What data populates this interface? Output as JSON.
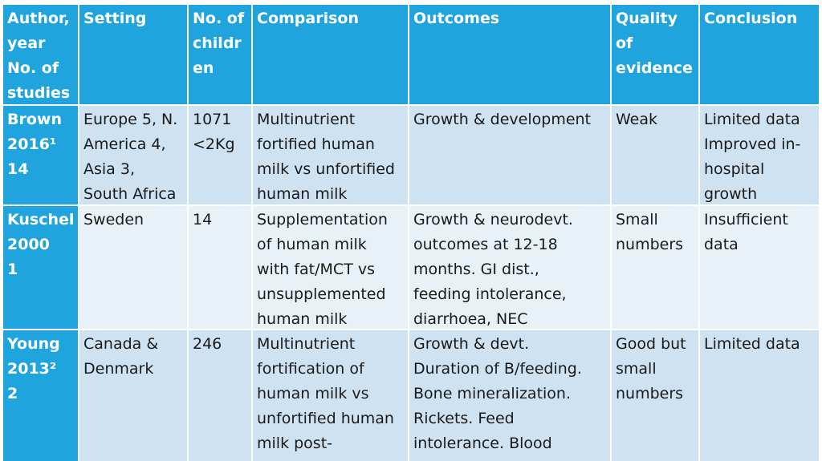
{
  "table": {
    "header": [
      [
        "Author,",
        "year",
        "No. of",
        "studies"
      ],
      [
        "Setting"
      ],
      [
        "No. of",
        "childr",
        "en"
      ],
      [
        "Comparison"
      ],
      [
        "Outcomes"
      ],
      [
        "Quality",
        "of",
        "evidence"
      ],
      [
        "Conclusion"
      ]
    ],
    "rows": [
      [
        [
          "Brown",
          "2016¹",
          "14"
        ],
        [
          "Europe 5, N.",
          "America 4,",
          "Asia 3,",
          "South Africa"
        ],
        [
          "1071",
          "<2Kg"
        ],
        [
          "Multinutrient",
          "fortified human",
          "milk vs unfortified",
          "human milk"
        ],
        [
          "Growth & development"
        ],
        [
          "Weak"
        ],
        [
          "Limited data",
          "Improved in-",
          "hospital",
          "growth"
        ]
      ],
      [
        [
          "Kuschel",
          "2000",
          "1"
        ],
        [
          "Sweden"
        ],
        [
          "14"
        ],
        [
          "Supplementation",
          "of human milk",
          "with fat/MCT vs",
          "unsupplemented",
          "human milk"
        ],
        [
          "Growth & neurodevt.",
          "outcomes at 12-18",
          "months. GI dist.,",
          "feeding intolerance,",
          "diarrhoea, NEC"
        ],
        [
          "Small",
          "numbers"
        ],
        [
          "Insufficient",
          "data"
        ]
      ],
      [
        [
          "Young",
          "2013²",
          "2"
        ],
        [
          "Canada &",
          "Denmark"
        ],
        [
          "246"
        ],
        [
          "Multinutrient",
          "fortification of",
          "human milk vs",
          "unfortified human",
          "milk post-"
        ],
        [
          "Growth & devt.",
          "Duration of B/feeding.",
          "Bone mineralization.",
          "Rickets. Feed",
          "intolerance. Blood"
        ],
        [
          "Good but",
          "small",
          "numbers"
        ],
        [
          "Limited data"
        ]
      ]
    ]
  }
}
